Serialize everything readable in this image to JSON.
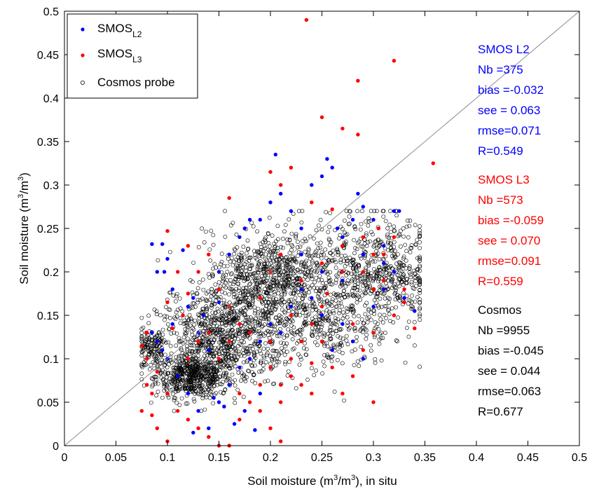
{
  "chart_data": {
    "type": "scatter",
    "xlabel_parts": [
      "Soil moisture (m",
      "3",
      "/m",
      "3",
      "), in situ"
    ],
    "ylabel_parts": [
      "Soil moisture (m",
      "3",
      "/m",
      "3",
      ")"
    ],
    "xlim": [
      0,
      0.5
    ],
    "ylim": [
      0,
      0.5
    ],
    "x_ticks": [
      "0",
      "0.05",
      "0.1",
      "0.15",
      "0.2",
      "0.25",
      "0.3",
      "0.35",
      "0.4",
      "0.45",
      "0.5"
    ],
    "y_ticks": [
      "0",
      "0.05",
      "0.1",
      "0.15",
      "0.2",
      "0.25",
      "0.3",
      "0.35",
      "0.4",
      "0.45",
      "0.5"
    ],
    "grid": false,
    "reference_line": {
      "from": [
        0,
        0
      ],
      "to": [
        0.5,
        0.5
      ]
    },
    "legend_position": "top-left",
    "legend": [
      {
        "base": "SMOS",
        "sub": "L2",
        "marker": "dot",
        "color": "#0000ff"
      },
      {
        "base": "SMOS",
        "sub": "L3",
        "marker": "dot",
        "color": "#ff0000"
      },
      {
        "base": "Cosmos probe",
        "sub": "",
        "marker": "circle",
        "color": "#000000"
      }
    ],
    "stats": [
      {
        "color": "#0000ff",
        "lines": [
          "SMOS L2",
          "Nb =375",
          "bias =-0.032",
          "see = 0.063",
          "rmse=0.071",
          "R=0.549"
        ]
      },
      {
        "color": "#ff0000",
        "lines": [
          "SMOS L3",
          "Nb =573",
          "bias =-0.059",
          "see = 0.070",
          "rmse=0.091",
          "R=0.559"
        ]
      },
      {
        "color": "#000000",
        "lines": [
          "Cosmos",
          "Nb =9955",
          "bias =-0.045",
          "see = 0.044",
          "rmse=0.063",
          "R=0.677"
        ]
      }
    ],
    "series": [
      {
        "name": "SMOS L2",
        "color": "#0000ff",
        "marker": "dot",
        "points": [
          [
            0.085,
            0.232
          ],
          [
            0.09,
            0.2
          ],
          [
            0.095,
            0.232
          ],
          [
            0.1,
            0.215
          ],
          [
            0.097,
            0.2
          ],
          [
            0.105,
            0.18
          ],
          [
            0.115,
            0.225
          ],
          [
            0.12,
            0.16
          ],
          [
            0.13,
            0.13
          ],
          [
            0.14,
            0.11
          ],
          [
            0.15,
            0.2
          ],
          [
            0.16,
            0.22
          ],
          [
            0.17,
            0.24
          ],
          [
            0.175,
            0.25
          ],
          [
            0.18,
            0.26
          ],
          [
            0.19,
            0.26
          ],
          [
            0.2,
            0.28
          ],
          [
            0.205,
            0.335
          ],
          [
            0.21,
            0.29
          ],
          [
            0.22,
            0.27
          ],
          [
            0.23,
            0.25
          ],
          [
            0.24,
            0.3
          ],
          [
            0.25,
            0.31
          ],
          [
            0.255,
            0.33
          ],
          [
            0.26,
            0.32
          ],
          [
            0.265,
            0.25
          ],
          [
            0.27,
            0.24
          ],
          [
            0.28,
            0.26
          ],
          [
            0.285,
            0.29
          ],
          [
            0.29,
            0.275
          ],
          [
            0.3,
            0.26
          ],
          [
            0.31,
            0.23
          ],
          [
            0.32,
            0.27
          ],
          [
            0.325,
            0.27
          ],
          [
            0.1,
            0.1
          ],
          [
            0.11,
            0.08
          ],
          [
            0.12,
            0.06
          ],
          [
            0.13,
            0.04
          ],
          [
            0.14,
            0.02
          ],
          [
            0.15,
            0.05
          ],
          [
            0.16,
            0.07
          ],
          [
            0.17,
            0.09
          ],
          [
            0.18,
            0.1
          ],
          [
            0.19,
            0.12
          ],
          [
            0.2,
            0.14
          ],
          [
            0.21,
            0.13
          ],
          [
            0.22,
            0.16
          ],
          [
            0.23,
            0.18
          ],
          [
            0.24,
            0.17
          ],
          [
            0.25,
            0.15
          ],
          [
            0.26,
            0.11
          ],
          [
            0.27,
            0.14
          ],
          [
            0.28,
            0.12
          ],
          [
            0.29,
            0.1
          ],
          [
            0.3,
            0.16
          ],
          [
            0.31,
            0.18
          ],
          [
            0.32,
            0.2
          ],
          [
            0.33,
            0.17
          ],
          [
            0.34,
            0.155
          ],
          [
            0.085,
            0.13
          ],
          [
            0.09,
            0.12
          ],
          [
            0.095,
            0.11
          ],
          [
            0.105,
            0.14
          ],
          [
            0.125,
            0.015
          ],
          [
            0.145,
            0.055
          ],
          [
            0.155,
            0.045
          ],
          [
            0.165,
            0.025
          ],
          [
            0.175,
            0.04
          ],
          [
            0.185,
            0.018
          ],
          [
            0.19,
            0.06
          ],
          [
            0.135,
            0.15
          ],
          [
            0.15,
            0.165
          ],
          [
            0.125,
            0.17
          ],
          [
            0.23,
            0.22
          ],
          [
            0.25,
            0.2
          ],
          [
            0.27,
            0.19
          ],
          [
            0.29,
            0.22
          ],
          [
            0.31,
            0.21
          ]
        ]
      },
      {
        "name": "SMOS L3",
        "color": "#ff0000",
        "marker": "dot",
        "points": [
          [
            0.235,
            0.49
          ],
          [
            0.32,
            0.443
          ],
          [
            0.285,
            0.42
          ],
          [
            0.25,
            0.378
          ],
          [
            0.27,
            0.365
          ],
          [
            0.285,
            0.358
          ],
          [
            0.22,
            0.32
          ],
          [
            0.2,
            0.315
          ],
          [
            0.21,
            0.3
          ],
          [
            0.24,
            0.28
          ],
          [
            0.26,
            0.272
          ],
          [
            0.16,
            0.285
          ],
          [
            0.358,
            0.325
          ],
          [
            0.1,
            0.247
          ],
          [
            0.12,
            0.23
          ],
          [
            0.13,
            0.2
          ],
          [
            0.14,
            0.22
          ],
          [
            0.15,
            0.18
          ],
          [
            0.16,
            0.16
          ],
          [
            0.17,
            0.14
          ],
          [
            0.19,
            0.17
          ],
          [
            0.2,
            0.2
          ],
          [
            0.21,
            0.22
          ],
          [
            0.23,
            0.19
          ],
          [
            0.25,
            0.21
          ],
          [
            0.27,
            0.23
          ],
          [
            0.29,
            0.2
          ],
          [
            0.3,
            0.22
          ],
          [
            0.31,
            0.19
          ],
          [
            0.33,
            0.165
          ],
          [
            0.34,
            0.155
          ],
          [
            0.08,
            0.13
          ],
          [
            0.075,
            0.115
          ],
          [
            0.08,
            0.1
          ],
          [
            0.09,
            0.085
          ],
          [
            0.08,
            0.07
          ],
          [
            0.085,
            0.06
          ],
          [
            0.1,
            0.06
          ],
          [
            0.11,
            0.04
          ],
          [
            0.12,
            0.03
          ],
          [
            0.13,
            0.02
          ],
          [
            0.14,
            0.01
          ],
          [
            0.15,
            0.0
          ],
          [
            0.16,
            0.0
          ],
          [
            0.1,
            0.005
          ],
          [
            0.09,
            0.02
          ],
          [
            0.075,
            0.04
          ],
          [
            0.085,
            0.035
          ],
          [
            0.17,
            0.03
          ],
          [
            0.18,
            0.05
          ],
          [
            0.19,
            0.07
          ],
          [
            0.2,
            0.09
          ],
          [
            0.21,
            0.07
          ],
          [
            0.22,
            0.1
          ],
          [
            0.23,
            0.12
          ],
          [
            0.24,
            0.14
          ],
          [
            0.25,
            0.16
          ],
          [
            0.26,
            0.09
          ],
          [
            0.27,
            0.06
          ],
          [
            0.28,
            0.08
          ],
          [
            0.29,
            0.11
          ],
          [
            0.3,
            0.05
          ],
          [
            0.3,
            0.13
          ],
          [
            0.32,
            0.15
          ],
          [
            0.33,
            0.18
          ],
          [
            0.34,
            0.135
          ],
          [
            0.24,
            0.06
          ],
          [
            0.21,
            0.005
          ],
          [
            0.2,
            0.02
          ],
          [
            0.15,
            0.1
          ],
          [
            0.14,
            0.13
          ],
          [
            0.13,
            0.12
          ],
          [
            0.12,
            0.1
          ],
          [
            0.16,
            0.12
          ],
          [
            0.18,
            0.13
          ],
          [
            0.2,
            0.12
          ],
          [
            0.22,
            0.08
          ],
          [
            0.25,
            0.12
          ],
          [
            0.28,
            0.14
          ],
          [
            0.3,
            0.18
          ],
          [
            0.31,
            0.22
          ],
          [
            0.32,
            0.24
          ],
          [
            0.1,
            0.165
          ],
          [
            0.11,
            0.2
          ],
          [
            0.12,
            0.175
          ],
          [
            0.105,
            0.135
          ],
          [
            0.115,
            0.15
          ],
          [
            0.17,
            0.06
          ],
          [
            0.19,
            0.04
          ],
          [
            0.21,
            0.05
          ],
          [
            0.23,
            0.07
          ],
          [
            0.255,
            0.175
          ],
          [
            0.27,
            0.2
          ],
          [
            0.29,
            0.24
          ],
          [
            0.305,
            0.25
          ],
          [
            0.22,
            0.15
          ],
          [
            0.24,
            0.095
          ]
        ]
      },
      {
        "name": "Cosmos probe",
        "color": "#000000",
        "marker": "circle",
        "clusters": [
          {
            "cx": 0.125,
            "cy": 0.08,
            "sx": 0.018,
            "sy": 0.012,
            "n": 520
          },
          {
            "cx": 0.15,
            "cy": 0.12,
            "sx": 0.03,
            "sy": 0.025,
            "n": 650
          },
          {
            "cx": 0.175,
            "cy": 0.175,
            "sx": 0.028,
            "sy": 0.03,
            "n": 420
          },
          {
            "cx": 0.205,
            "cy": 0.2,
            "sx": 0.02,
            "sy": 0.022,
            "n": 260
          },
          {
            "cx": 0.245,
            "cy": 0.18,
            "sx": 0.045,
            "sy": 0.035,
            "n": 420
          },
          {
            "cx": 0.29,
            "cy": 0.215,
            "sx": 0.03,
            "sy": 0.03,
            "n": 320
          },
          {
            "cx": 0.25,
            "cy": 0.13,
            "sx": 0.035,
            "sy": 0.025,
            "n": 260
          },
          {
            "cx": 0.085,
            "cy": 0.11,
            "sx": 0.008,
            "sy": 0.012,
            "n": 120
          },
          {
            "cx": 0.32,
            "cy": 0.2,
            "sx": 0.02,
            "sy": 0.025,
            "n": 160
          }
        ]
      }
    ]
  }
}
